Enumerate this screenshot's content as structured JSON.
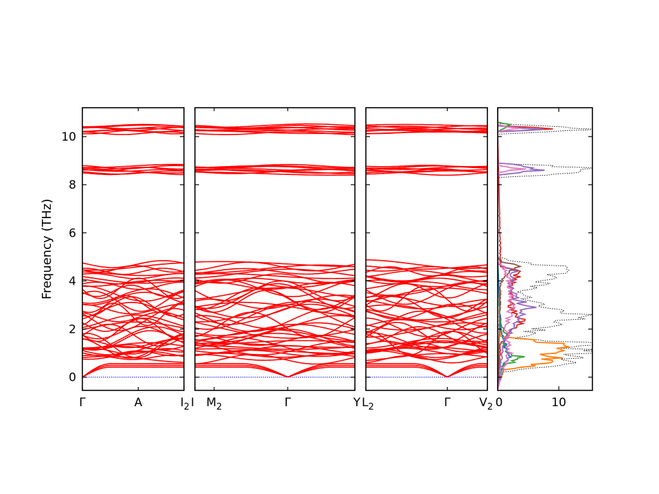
{
  "chart_data": {
    "type": "line",
    "ylabel": "Frequency (THz)",
    "ylim": [
      -0.55,
      11.2
    ],
    "yticks": [
      0,
      2,
      4,
      6,
      8,
      10
    ],
    "band_color": "#ff0000",
    "zero_line_color": "#0000ff",
    "panels": [
      {
        "x_tick_labels": [
          {
            "label": "Γ",
            "sub": "",
            "pos": 0
          },
          {
            "label": "A",
            "sub": "",
            "pos": 0.55
          },
          {
            "label": "I",
            "sub": "2",
            "pos": 1
          }
        ]
      },
      {
        "x_tick_labels": [
          {
            "label": "I",
            "sub": "",
            "pos": 0
          },
          {
            "label": "M",
            "sub": "2",
            "pos": 0.12
          },
          {
            "label": "Γ",
            "sub": "",
            "pos": 0.58
          },
          {
            "label": "Y",
            "sub": "",
            "pos": 1
          }
        ]
      },
      {
        "x_tick_labels": [
          {
            "label": "L",
            "sub": "2",
            "pos": 0
          },
          {
            "label": "Γ",
            "sub": "",
            "pos": 0.67
          },
          {
            "label": "V",
            "sub": "2",
            "pos": 1
          }
        ]
      }
    ],
    "band_groups": [
      {
        "center": 10.3,
        "spread": 0.18,
        "count": 8
      },
      {
        "center": 8.62,
        "spread": 0.18,
        "count": 8
      },
      {
        "center": 4.25,
        "spread": 0.5,
        "count": 10
      },
      {
        "center": 2.45,
        "spread": 1.3,
        "count": 24
      },
      {
        "center": 0.95,
        "spread": 0.5,
        "count": 12
      }
    ],
    "dos": {
      "xlim": [
        0,
        15.5
      ],
      "xticks": [
        0,
        10
      ],
      "total": [
        {
          "f": -0.5,
          "v": 0
        },
        {
          "f": 0.2,
          "v": 0.5
        },
        {
          "f": 0.6,
          "v": 14
        },
        {
          "f": 0.8,
          "v": 12
        },
        {
          "f": 1.0,
          "v": 15
        },
        {
          "f": 1.2,
          "v": 14.5
        },
        {
          "f": 1.45,
          "v": 13.5
        },
        {
          "f": 1.6,
          "v": 3
        },
        {
          "f": 1.9,
          "v": 6
        },
        {
          "f": 2.3,
          "v": 10.5
        },
        {
          "f": 2.6,
          "v": 14.5
        },
        {
          "f": 2.8,
          "v": 9
        },
        {
          "f": 3.2,
          "v": 5
        },
        {
          "f": 3.6,
          "v": 4
        },
        {
          "f": 3.9,
          "v": 8
        },
        {
          "f": 4.2,
          "v": 10
        },
        {
          "f": 4.5,
          "v": 14
        },
        {
          "f": 4.8,
          "v": 3
        },
        {
          "f": 5.0,
          "v": 0
        },
        {
          "f": 8.3,
          "v": 0
        },
        {
          "f": 8.5,
          "v": 15
        },
        {
          "f": 8.7,
          "v": 15.5
        },
        {
          "f": 8.9,
          "v": 0
        },
        {
          "f": 10.1,
          "v": 0
        },
        {
          "f": 10.3,
          "v": 15.5
        },
        {
          "f": 10.55,
          "v": 0
        },
        {
          "f": 11.2,
          "v": 0
        }
      ],
      "partials": [
        {
          "color": "#ff7f0e",
          "points": [
            {
              "f": -0.5,
              "v": 0
            },
            {
              "f": 0.3,
              "v": 1
            },
            {
              "f": 0.7,
              "v": 11
            },
            {
              "f": 0.9,
              "v": 7
            },
            {
              "f": 1.1,
              "v": 9.5
            },
            {
              "f": 1.3,
              "v": 10.5
            },
            {
              "f": 1.5,
              "v": 8.5
            },
            {
              "f": 1.7,
              "v": 0.5
            },
            {
              "f": 4.8,
              "v": 0
            },
            {
              "f": 11.2,
              "v": 0
            }
          ]
        },
        {
          "color": "#2ca02c",
          "points": [
            {
              "f": -0.5,
              "v": 0
            },
            {
              "f": 0.5,
              "v": 1
            },
            {
              "f": 0.8,
              "v": 4.5
            },
            {
              "f": 1.0,
              "v": 2
            },
            {
              "f": 1.3,
              "v": 1
            },
            {
              "f": 1.8,
              "v": 1.5
            },
            {
              "f": 2.2,
              "v": 0.5
            },
            {
              "f": 4.8,
              "v": 0
            },
            {
              "f": 10.2,
              "v": 0
            },
            {
              "f": 10.5,
              "v": 2
            },
            {
              "f": 10.6,
              "v": 0
            },
            {
              "f": 11.2,
              "v": 0
            }
          ]
        },
        {
          "color": "#1f77b4",
          "points": [
            {
              "f": -0.5,
              "v": 0
            },
            {
              "f": 0.5,
              "v": 1
            },
            {
              "f": 0.9,
              "v": 2
            },
            {
              "f": 1.2,
              "v": 1.5
            },
            {
              "f": 1.6,
              "v": 1
            },
            {
              "f": 2.0,
              "v": 0.5
            },
            {
              "f": 4.8,
              "v": 0
            },
            {
              "f": 11.2,
              "v": 0
            }
          ]
        },
        {
          "color": "#d62728",
          "points": [
            {
              "f": -0.5,
              "v": 0
            },
            {
              "f": 1.4,
              "v": 0.5
            },
            {
              "f": 2.0,
              "v": 3
            },
            {
              "f": 2.4,
              "v": 4.5
            },
            {
              "f": 2.8,
              "v": 2.5
            },
            {
              "f": 3.6,
              "v": 2
            },
            {
              "f": 4.0,
              "v": 3
            },
            {
              "f": 4.4,
              "v": 3.5
            },
            {
              "f": 4.6,
              "v": 0.5
            },
            {
              "f": 10.2,
              "v": 0
            },
            {
              "f": 10.32,
              "v": 10
            },
            {
              "f": 10.45,
              "v": 0
            },
            {
              "f": 11.2,
              "v": 0
            }
          ]
        },
        {
          "color": "#9467bd",
          "points": [
            {
              "f": -0.5,
              "v": 0
            },
            {
              "f": 1.5,
              "v": 1
            },
            {
              "f": 2.0,
              "v": 2.5
            },
            {
              "f": 2.5,
              "v": 3.5
            },
            {
              "f": 2.9,
              "v": 5.5
            },
            {
              "f": 3.3,
              "v": 3
            },
            {
              "f": 3.8,
              "v": 2
            },
            {
              "f": 4.4,
              "v": 3
            },
            {
              "f": 4.7,
              "v": 0
            },
            {
              "f": 8.4,
              "v": 0
            },
            {
              "f": 8.6,
              "v": 8
            },
            {
              "f": 8.8,
              "v": 5
            },
            {
              "f": 8.9,
              "v": 0
            },
            {
              "f": 10.2,
              "v": 0
            },
            {
              "f": 10.3,
              "v": 7
            },
            {
              "f": 10.45,
              "v": 0
            },
            {
              "f": 11.2,
              "v": 0
            }
          ]
        },
        {
          "color": "#8c564b",
          "points": [
            {
              "f": -0.5,
              "v": 0
            },
            {
              "f": 3.9,
              "v": 0.5
            },
            {
              "f": 4.3,
              "v": 1.5
            },
            {
              "f": 4.6,
              "v": 4
            },
            {
              "f": 4.8,
              "v": 0.5
            },
            {
              "f": 5.0,
              "v": 0
            },
            {
              "f": 11.2,
              "v": 0
            }
          ]
        },
        {
          "color": "#e377c2",
          "points": [
            {
              "f": -0.5,
              "v": 0
            },
            {
              "f": 0.4,
              "v": 1
            },
            {
              "f": 1.0,
              "v": 2
            },
            {
              "f": 2.0,
              "v": 1.5
            },
            {
              "f": 3.0,
              "v": 2.5
            },
            {
              "f": 4.0,
              "v": 2
            },
            {
              "f": 4.6,
              "v": 1
            },
            {
              "f": 4.8,
              "v": 0
            },
            {
              "f": 8.5,
              "v": 0
            },
            {
              "f": 8.65,
              "v": 4
            },
            {
              "f": 8.8,
              "v": 0
            },
            {
              "f": 10.2,
              "v": 0
            },
            {
              "f": 10.35,
              "v": 3
            },
            {
              "f": 10.5,
              "v": 0
            },
            {
              "f": 11.2,
              "v": 0
            }
          ]
        }
      ]
    }
  }
}
